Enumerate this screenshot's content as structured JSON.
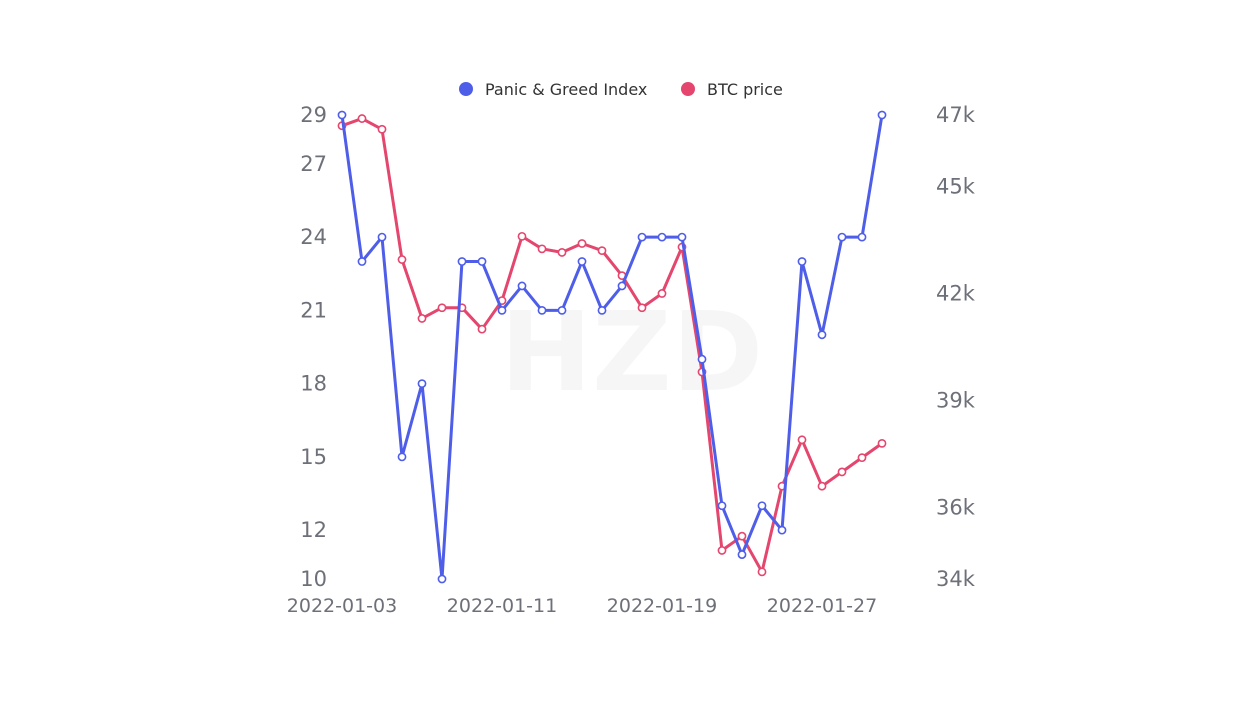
{
  "chart_data": {
    "type": "line",
    "x": [
      "2022-01-03",
      "2022-01-04",
      "2022-01-05",
      "2022-01-06",
      "2022-01-07",
      "2022-01-08",
      "2022-01-09",
      "2022-01-10",
      "2022-01-11",
      "2022-01-12",
      "2022-01-13",
      "2022-01-14",
      "2022-01-15",
      "2022-01-16",
      "2022-01-17",
      "2022-01-18",
      "2022-01-19",
      "2022-01-20",
      "2022-01-21",
      "2022-01-22",
      "2022-01-23",
      "2022-01-24",
      "2022-01-25",
      "2022-01-26",
      "2022-01-27",
      "2022-01-28",
      "2022-01-29",
      "2022-01-30"
    ],
    "x_tick_labels": [
      "2022-01-03",
      "2022-01-11",
      "2022-01-19",
      "2022-01-27"
    ],
    "series": [
      {
        "name": "Panic & Greed Index",
        "axis": "left",
        "color": "#4e5ee8",
        "values": [
          29,
          23,
          24,
          15,
          18,
          10,
          23,
          23,
          21,
          22,
          21,
          21,
          23,
          21,
          22,
          24,
          24,
          24,
          19,
          13,
          11,
          13,
          12,
          23,
          20,
          24,
          24,
          29
        ]
      },
      {
        "name": "BTC price",
        "axis": "right",
        "color": "#e4466e",
        "values": [
          46700,
          46900,
          46600,
          42950,
          41300,
          41600,
          41600,
          41000,
          41800,
          43600,
          43250,
          43150,
          43400,
          43200,
          42500,
          41600,
          42000,
          43300,
          39800,
          34800,
          35200,
          34200,
          36600,
          37900,
          36600,
          37000,
          37400,
          37800
        ]
      }
    ],
    "y_left": {
      "ticks": [
        29,
        27,
        24,
        21,
        18,
        15,
        12,
        10
      ],
      "range": [
        10,
        29
      ]
    },
    "y_right": {
      "ticks": [
        "47k",
        "45k",
        "42k",
        "39k",
        "36k",
        "34k"
      ],
      "tick_values": [
        47000,
        45000,
        42000,
        39000,
        36000,
        34000
      ],
      "range": [
        34000,
        47000
      ]
    },
    "legend": {
      "position": "top-center"
    },
    "grid": false
  }
}
